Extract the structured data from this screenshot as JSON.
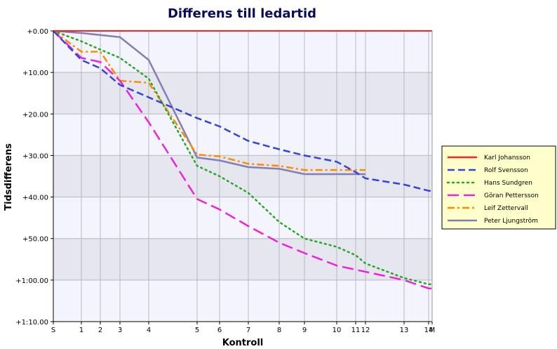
{
  "chart_data": {
    "type": "line",
    "title": "Differens till ledartid",
    "xlabel": "Kontroll",
    "ylabel": "Tidsdifferens",
    "x_ticks": [
      "S",
      "1",
      "2",
      "3",
      "4",
      "5",
      "6",
      "7",
      "8",
      "9",
      "10",
      "11",
      "12",
      "13",
      "14",
      "M"
    ],
    "y_ticks": [
      "+0.00",
      "+10.00",
      "+20.00",
      "+30.00",
      "+40.00",
      "+50.00",
      "+1:00.00",
      "+1:10.00"
    ],
    "ylim": [
      0,
      70
    ],
    "y_unit": "minutes",
    "grid": true,
    "legend_position": "right",
    "series": [
      {
        "name": "Karl Johansson",
        "color": "#ff2020",
        "style": "solid",
        "values": [
          0,
          0,
          0,
          0,
          0,
          0,
          0,
          0,
          0,
          0,
          0,
          0,
          0,
          0,
          0,
          0
        ]
      },
      {
        "name": "Rolf Svensson",
        "color": "#3344dd",
        "style": "dashed",
        "values": [
          0,
          7.0,
          9.0,
          13.0,
          16.0,
          21.0,
          23.0,
          26.5,
          28.5,
          30.0,
          31.5,
          34.0,
          35.5,
          37.0,
          38.5,
          38.5
        ]
      },
      {
        "name": "Hans Sundgren",
        "color": "#22aa22",
        "style": "dotted",
        "values": [
          0,
          2.5,
          4.5,
          6.5,
          11.5,
          32.5,
          35.0,
          39.0,
          46.0,
          50.0,
          52.0,
          54.0,
          56.0,
          59.5,
          61.0,
          61.0
        ]
      },
      {
        "name": "Göran Pettersson",
        "color": "#ee22dd",
        "style": "long-dash",
        "values": [
          0,
          6.5,
          7.5,
          12.0,
          22.0,
          40.5,
          43.0,
          47.0,
          51.0,
          53.5,
          56.5,
          57.5,
          58.0,
          60.0,
          62.0,
          62.0
        ]
      },
      {
        "name": "Leif Zettervall",
        "color": "#ff8c00",
        "style": "dash-dot",
        "values": [
          0,
          5.0,
          5.0,
          12.0,
          12.5,
          29.8,
          30.2,
          32.0,
          32.5,
          33.5,
          33.5,
          33.5,
          33.5,
          null,
          null,
          null
        ]
      },
      {
        "name": "Peter Ljungström",
        "color": "#8080b8",
        "style": "solid",
        "values": [
          0,
          0.5,
          1.0,
          1.5,
          7.0,
          30.5,
          31.2,
          32.8,
          33.2,
          34.5,
          34.5,
          34.5,
          34.5,
          null,
          null,
          null
        ]
      }
    ]
  }
}
